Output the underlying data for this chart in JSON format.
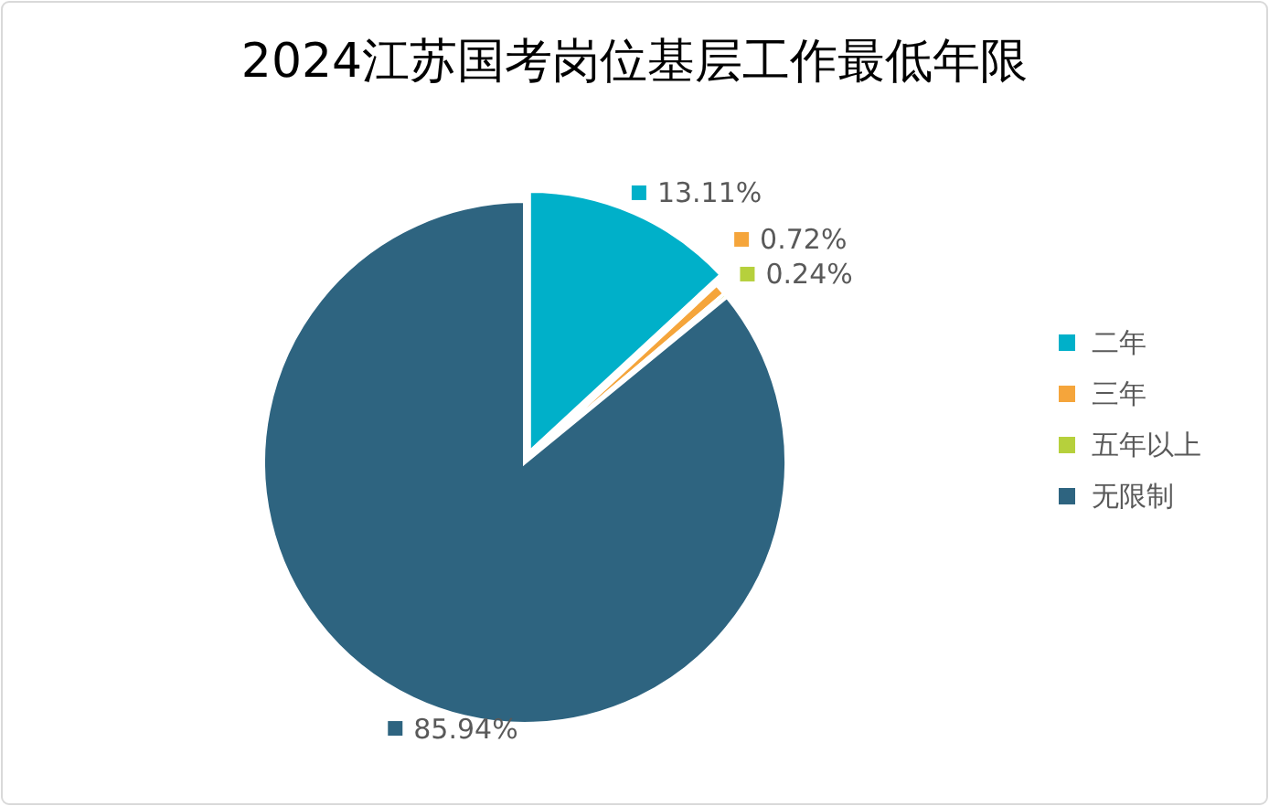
{
  "chart_data": {
    "type": "pie",
    "title": "2024江苏国考岗位基层工作最低年限",
    "categories": [
      "二年",
      "三年",
      "五年以上",
      "无限制"
    ],
    "values": [
      13.11,
      0.72,
      0.24,
      85.94
    ],
    "value_labels": [
      "13.11%",
      "0.72%",
      "0.24%",
      "85.94%"
    ],
    "colors": [
      "#00b0c9",
      "#f5a53b",
      "#b6d03c",
      "#2e6480"
    ],
    "legend": "right"
  }
}
